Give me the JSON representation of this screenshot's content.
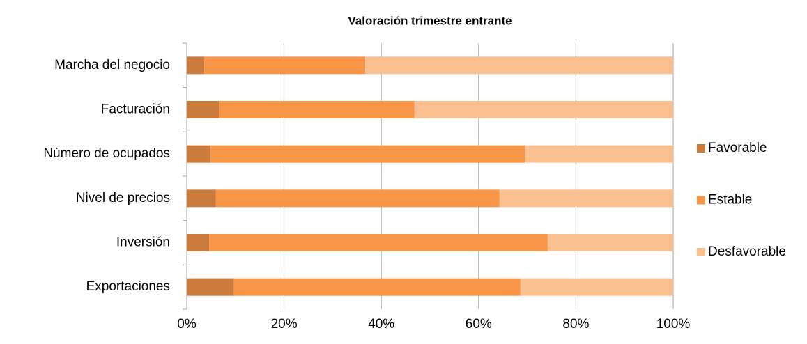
{
  "chart_data": {
    "type": "stacked_barh",
    "title": "Valoración trimestre entrante",
    "categories": [
      "Marcha del negocio",
      "Facturación",
      "Número de ocupados",
      "Nivel de precios",
      "Inversión",
      "Exportaciones"
    ],
    "series": [
      {
        "name": "Favorable",
        "color": "#cb7b3c",
        "values": [
          3.6,
          6.6,
          4.9,
          6.0,
          4.6,
          9.7
        ]
      },
      {
        "name": "Estable",
        "color": "#f79646",
        "values": [
          33.1,
          40.2,
          64.6,
          58.3,
          69.6,
          58.9
        ]
      },
      {
        "name": "Desfavorable",
        "color": "#fac090",
        "values": [
          63.3,
          53.2,
          30.5,
          35.7,
          25.8,
          31.4
        ]
      }
    ],
    "xlim": [
      0,
      100
    ],
    "xticks": [
      {
        "value": 0,
        "label": "0%"
      },
      {
        "value": 20,
        "label": "20%"
      },
      {
        "value": 40,
        "label": "40%"
      },
      {
        "value": 60,
        "label": "60%"
      },
      {
        "value": 80,
        "label": "80%"
      },
      {
        "value": 100,
        "label": "100%"
      }
    ],
    "grid": true,
    "legend": "right"
  }
}
